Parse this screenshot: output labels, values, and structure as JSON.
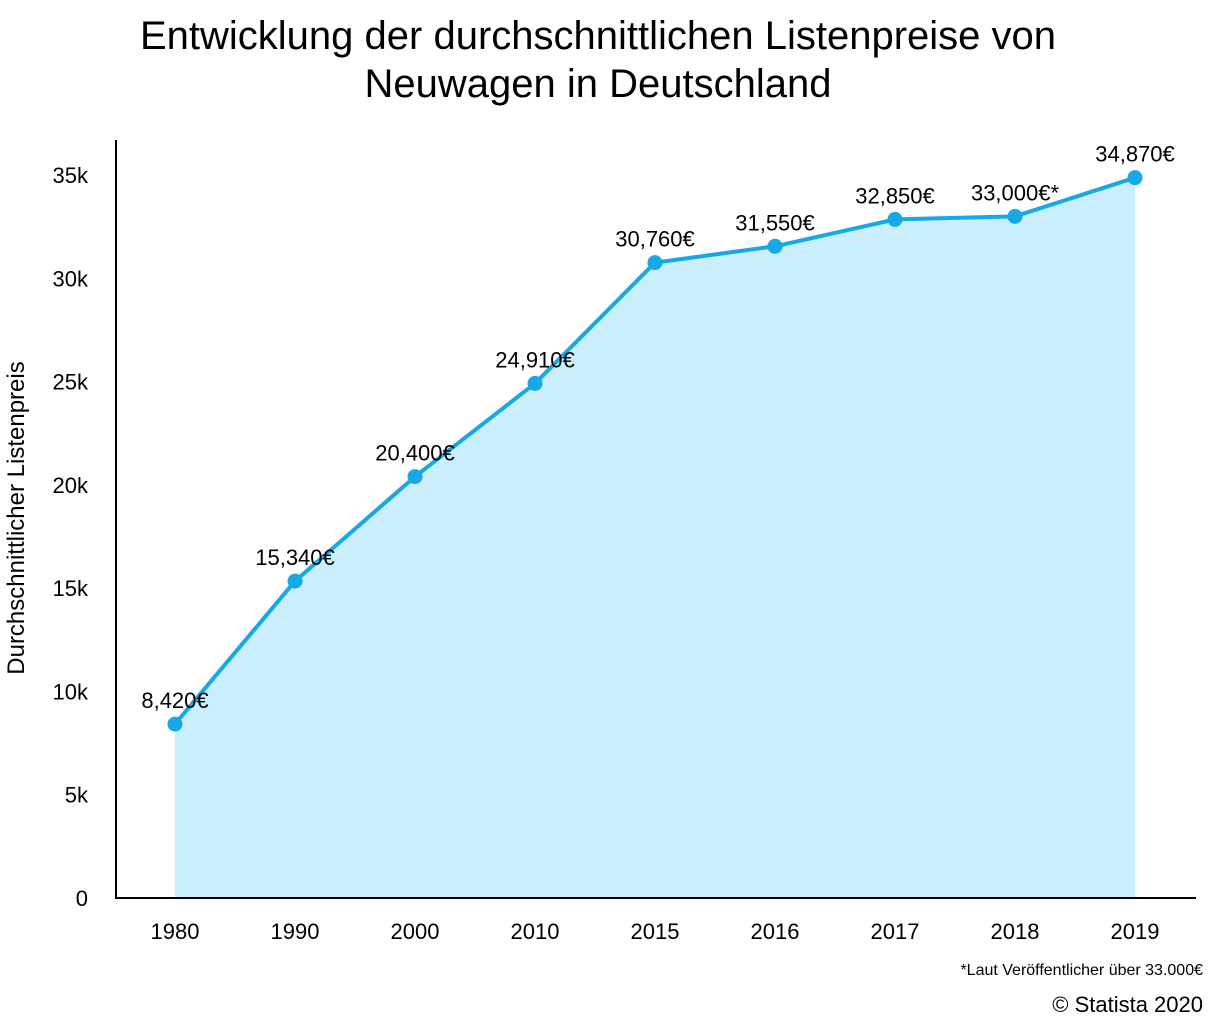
{
  "chart_data": {
    "type": "area",
    "title_line1": "Entwicklung der durchschnittlichen Listenpreise von",
    "title_line2": "Neuwagen in Deutschland",
    "xlabel": "",
    "ylabel": "Durchschnittlicher Listenpreis",
    "categories": [
      "1980",
      "1990",
      "2000",
      "2010",
      "2015",
      "2016",
      "2017",
      "2018",
      "2019"
    ],
    "values": [
      8420,
      15340,
      20400,
      24910,
      30760,
      31550,
      32850,
      33000,
      34870
    ],
    "data_labels": [
      "8,420€",
      "15,340€",
      "20,400€",
      "24,910€",
      "30,760€",
      "31,550€",
      "32,850€",
      "33,000€*",
      "34,870€"
    ],
    "yticks": [
      0,
      5000,
      10000,
      15000,
      20000,
      25000,
      30000,
      35000
    ],
    "ytick_labels": [
      "0",
      "5k",
      "10k",
      "15k",
      "20k",
      "25k",
      "30k",
      "35k"
    ],
    "ylim": [
      0,
      36500
    ],
    "grid": false,
    "line_color": "#17a8e6",
    "fill_color": "#caeefb"
  },
  "footnote": "*Laut Veröffentlicher über 33.000€",
  "copyright": "© Statista 2020"
}
